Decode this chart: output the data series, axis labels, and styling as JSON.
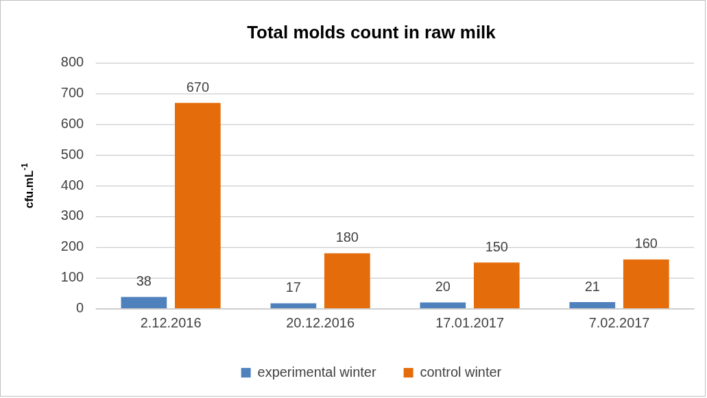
{
  "chart_data": {
    "type": "bar",
    "title": "Total molds count in raw milk",
    "ylabel": "cfu.mL$^{-1}$",
    "categories": [
      "2.12.2016",
      "20.12.2016",
      "17.01.2017",
      "7.02.2017"
    ],
    "series": [
      {
        "name": "experimental winter",
        "color": "#4f81bd",
        "values": [
          38,
          17,
          20,
          21
        ]
      },
      {
        "name": "control winter",
        "color": "#e46c0a",
        "values": [
          670,
          180,
          150,
          160
        ]
      }
    ],
    "ylim": [
      0,
      800
    ],
    "yticks": [
      0,
      100,
      200,
      300,
      400,
      500,
      600,
      700,
      800
    ],
    "grid": "y",
    "legend": "bottom",
    "data_labels": true
  }
}
